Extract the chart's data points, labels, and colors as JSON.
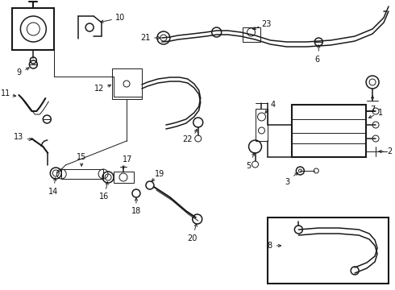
{
  "bg_color": "#ffffff",
  "line_color": "#1a1a1a",
  "label_color": "#111111",
  "fs": 7.0,
  "lw_main": 1.1,
  "lw_thin": 0.7,
  "lw_thick": 1.5,
  "figsize": [
    4.9,
    3.6
  ],
  "dpi": 100,
  "xlim": [
    0,
    490
  ],
  "ylim": [
    360,
    0
  ]
}
